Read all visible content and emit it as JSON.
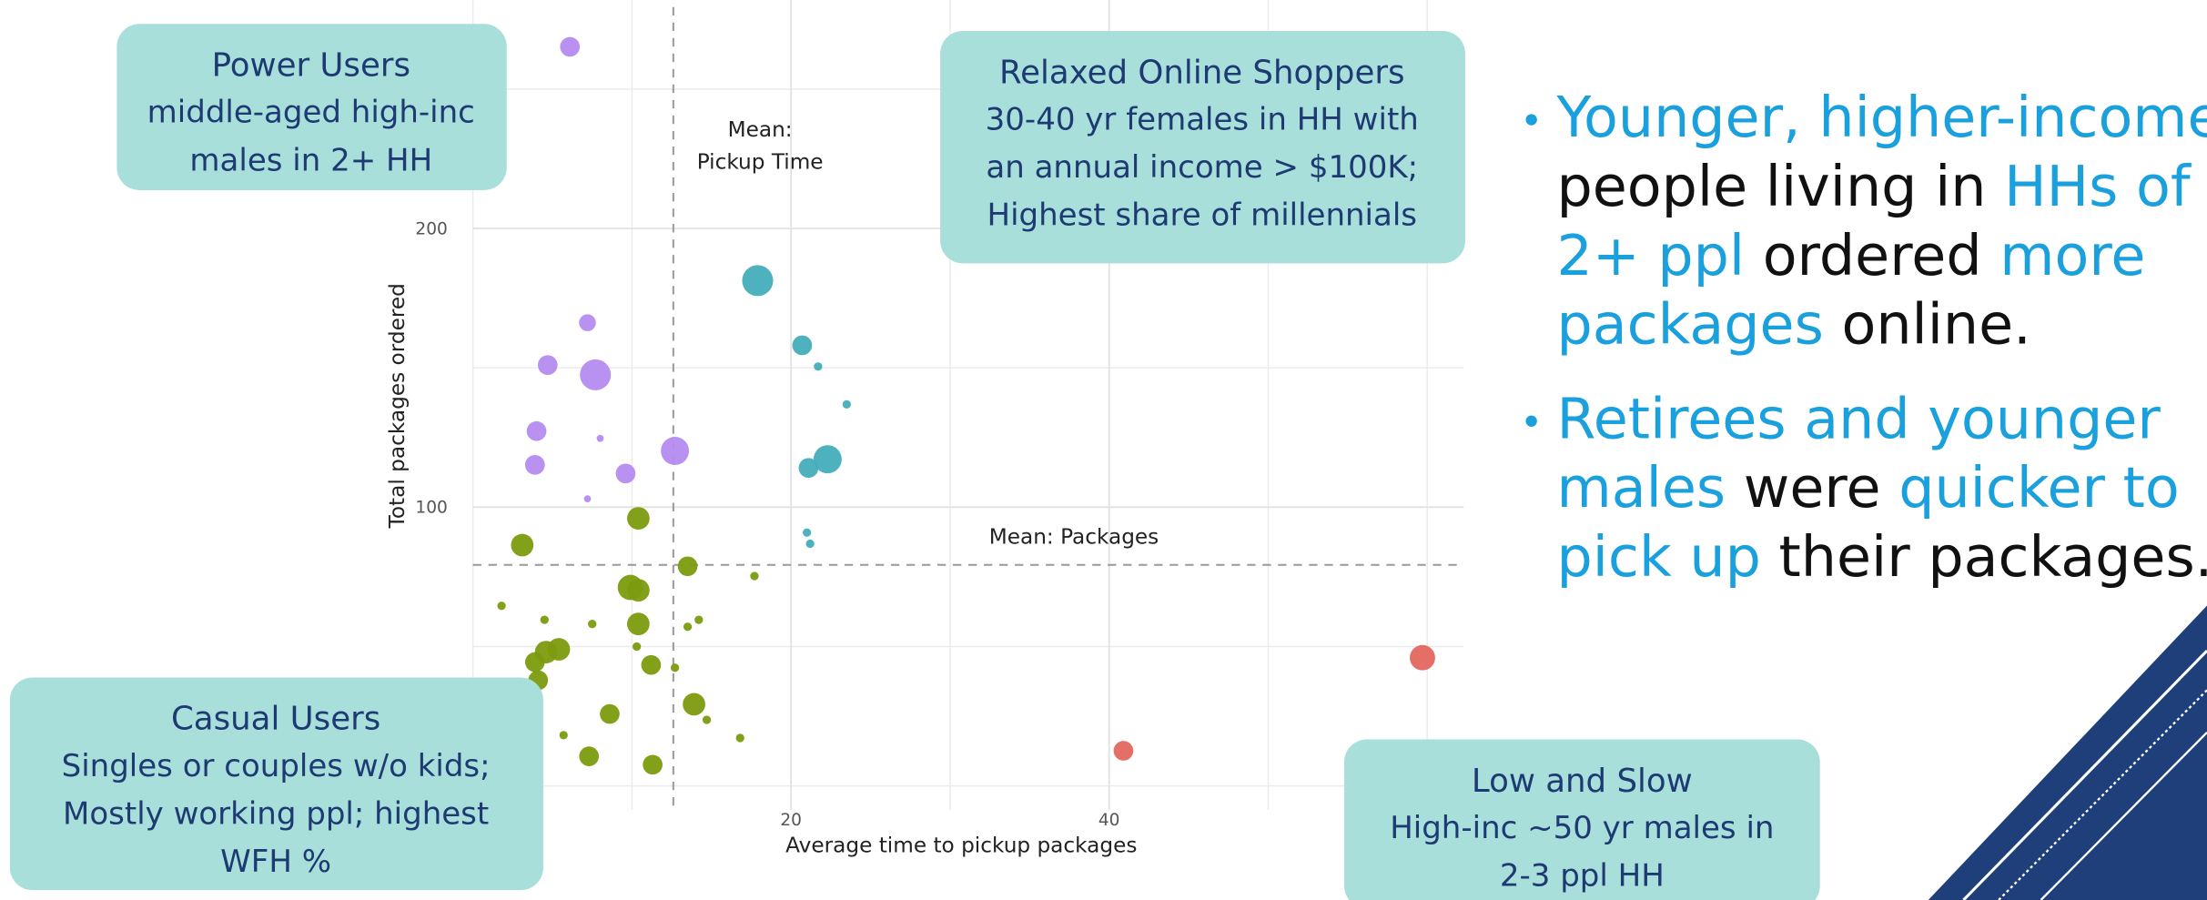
{
  "chart_data": {
    "type": "scatter",
    "xlabel": "Average time to pickup packages",
    "ylabel": "Total packages ordered",
    "xlim": [
      0,
      62.3
    ],
    "ylim": [
      -8.6,
      282
    ],
    "xticks": [
      20,
      40
    ],
    "yticks": [
      100,
      200
    ],
    "minor_xticks": [
      0,
      10,
      30,
      50,
      60
    ],
    "minor_yticks": [
      0,
      50,
      150,
      250
    ],
    "grid": true,
    "mean_x": 12.6,
    "mean_x_label": [
      "Mean:",
      "Pickup Time"
    ],
    "mean_y": 79.3,
    "mean_y_label": "Mean: Packages",
    "series": [
      {
        "color": "#b58cf0",
        "x": [
          6.1,
          7.2,
          4.7,
          7.7,
          4.0,
          8.0,
          3.9,
          9.6,
          12.7,
          7.2
        ],
        "values": [
          265.2,
          166.2,
          151.0,
          147.5,
          127.3,
          124.7,
          115.2,
          112.1,
          120.2,
          103.0
        ],
        "sizes": [
          7,
          6,
          7,
          11,
          7,
          2.5,
          7,
          7,
          10,
          2.5
        ]
      },
      {
        "color": "#45aebb",
        "x": [
          17.9,
          20.7,
          21.7,
          23.5,
          21.1,
          22.3,
          21.0,
          21.2
        ],
        "values": [
          181.3,
          158.1,
          150.5,
          136.9,
          114.1,
          117.2,
          90.9,
          86.9
        ],
        "sizes": [
          11,
          7,
          3,
          3,
          7,
          10,
          3,
          3
        ]
      },
      {
        "color": "#e2675e",
        "x": [
          59.7,
          40.9
        ],
        "values": [
          46.0,
          12.6
        ],
        "sizes": [
          9,
          7
        ]
      },
      {
        "color": "#7b9b0e",
        "x": [
          3.1,
          10.4,
          13.5,
          17.7,
          1.8,
          9.9,
          10.4,
          4.5,
          7.5,
          10.4,
          13.5,
          14.2,
          5.4,
          4.6,
          3.9,
          10.3,
          11.2,
          12.7,
          4.1,
          8.6,
          13.9,
          14.7,
          5.7,
          16.8,
          7.3,
          11.3
        ],
        "values": [
          86.4,
          96.0,
          78.8,
          75.3,
          64.6,
          71.2,
          70.2,
          59.6,
          58.1,
          58.1,
          57.1,
          59.6,
          49.0,
          48.0,
          44.4,
          50.0,
          43.4,
          42.4,
          37.9,
          25.8,
          29.3,
          23.7,
          18.2,
          17.2,
          10.6,
          7.6
        ],
        "sizes": [
          8,
          8,
          7,
          3,
          3,
          9,
          8,
          3,
          3,
          8,
          3,
          3,
          8,
          8,
          7,
          3,
          7,
          3,
          7,
          7,
          8,
          3,
          3,
          3,
          7,
          7
        ]
      }
    ],
    "annotations": [
      {
        "title": "Power Users",
        "lines": [
          "middle-aged high-inc",
          "males in 2+ HH"
        ]
      },
      {
        "title": "Relaxed Online Shoppers",
        "lines": [
          "30-40 yr females in HH with",
          "an annual income > $100K;",
          "Highest share of millennials"
        ]
      },
      {
        "title": "Casual Users",
        "lines": [
          "Singles or couples w/o kids;",
          "Mostly working ppl; highest",
          "WFH %"
        ]
      },
      {
        "title": "Low and Slow",
        "lines": [
          "High-inc ~50 yr males in",
          "2-3 ppl HH"
        ]
      }
    ]
  },
  "bullets": [
    [
      [
        {
          "text": "Younger, higher-income",
          "highlight": true
        }
      ],
      [
        {
          "text": "people living in ",
          "highlight": false
        },
        {
          "text": "HHs of",
          "highlight": true
        }
      ],
      [
        {
          "text": "2+ ppl",
          "highlight": true
        },
        {
          "text": " ordered ",
          "highlight": false
        },
        {
          "text": "more",
          "highlight": true
        }
      ],
      [
        {
          "text": "packages",
          "highlight": true
        },
        {
          "text": " online.",
          "highlight": false
        }
      ]
    ],
    [
      [
        {
          "text": "Retirees and younger",
          "highlight": true
        }
      ],
      [
        {
          "text": "males",
          "highlight": true
        },
        {
          "text": " were ",
          "highlight": false
        },
        {
          "text": "quicker to",
          "highlight": true
        }
      ],
      [
        {
          "text": "pick up",
          "highlight": true
        },
        {
          "text": " their packages.",
          "highlight": false
        }
      ]
    ]
  ]
}
